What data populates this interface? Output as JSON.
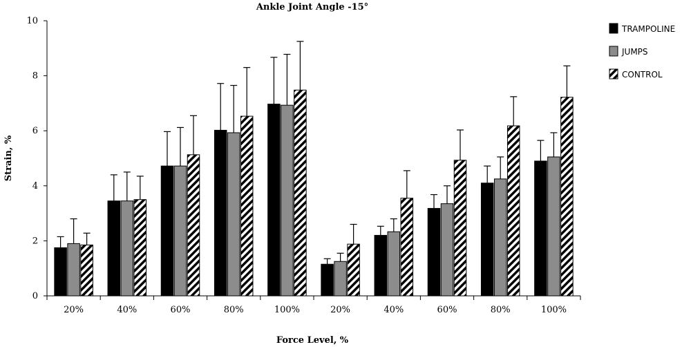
{
  "chart_data": {
    "type": "bar",
    "title": "Ankle Joint Angle -15°",
    "xlabel": "Force Level, %",
    "ylabel": "Strain, %",
    "ylim": [
      0,
      10
    ],
    "yticks": [
      0,
      2,
      4,
      6,
      8,
      10
    ],
    "categories": [
      "20%",
      "40%",
      "60%",
      "80%",
      "100%",
      "20%",
      "40%",
      "60%",
      "80%",
      "100%"
    ],
    "legend_position": "right",
    "series": [
      {
        "name": "TRAMPOLINE",
        "fill": "black",
        "color": "#000000",
        "values": [
          1.75,
          3.45,
          4.72,
          6.02,
          6.97,
          1.15,
          2.2,
          3.18,
          4.1,
          4.9
        ],
        "errors": [
          0.4,
          0.95,
          1.25,
          1.7,
          1.7,
          0.2,
          0.33,
          0.5,
          0.62,
          0.75
        ]
      },
      {
        "name": "JUMPS",
        "fill": "gray",
        "color": "#8c8c8c",
        "values": [
          1.9,
          3.45,
          4.72,
          5.93,
          6.93,
          1.25,
          2.33,
          3.35,
          4.25,
          5.05
        ],
        "errors": [
          0.9,
          1.05,
          1.4,
          1.72,
          1.85,
          0.3,
          0.47,
          0.65,
          0.8,
          0.88
        ]
      },
      {
        "name": "CONTROL",
        "fill": "hatch",
        "color": "#ffffff",
        "values": [
          1.85,
          3.5,
          5.13,
          6.53,
          7.48,
          1.88,
          3.55,
          4.93,
          6.18,
          7.22
        ],
        "errors": [
          0.43,
          0.85,
          1.42,
          1.77,
          1.77,
          0.72,
          1.0,
          1.1,
          1.06,
          1.14
        ]
      }
    ]
  }
}
